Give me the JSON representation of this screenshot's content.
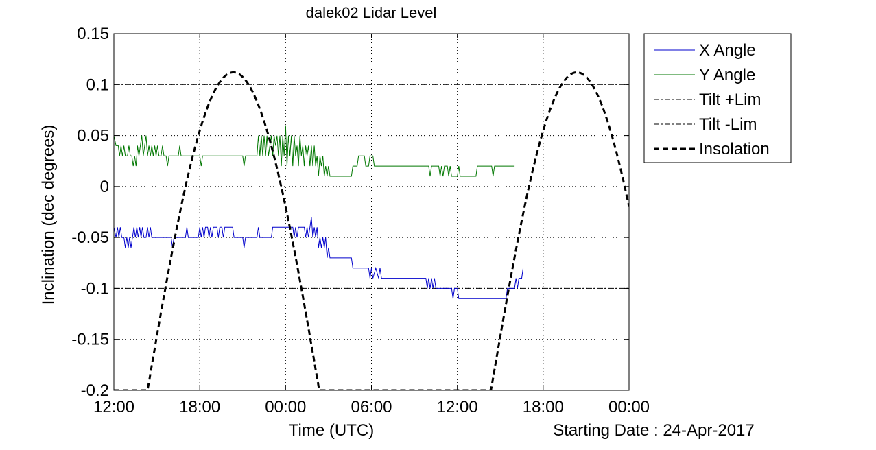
{
  "chart_data": {
    "type": "line",
    "title": "dalek02 Lidar Level",
    "xlabel": "Time (UTC)",
    "ylabel": "Inclination (dec degrees)",
    "footer_note": "Starting Date : 24-Apr-2017",
    "xlim_hours": [
      0,
      36
    ],
    "ylim": [
      -0.2,
      0.15
    ],
    "x_ticks": [
      {
        "hour": 0,
        "label": "12:00"
      },
      {
        "hour": 6,
        "label": "18:00"
      },
      {
        "hour": 12,
        "label": "00:00"
      },
      {
        "hour": 18,
        "label": "06:00"
      },
      {
        "hour": 24,
        "label": "12:00"
      },
      {
        "hour": 30,
        "label": "18:00"
      },
      {
        "hour": 36,
        "label": "00:00"
      }
    ],
    "y_ticks": [
      {
        "value": 0.15,
        "label": "0.15"
      },
      {
        "value": 0.1,
        "label": "0.1"
      },
      {
        "value": 0.05,
        "label": "0.05"
      },
      {
        "value": 0,
        "label": "0"
      },
      {
        "value": -0.05,
        "label": "-0.05"
      },
      {
        "value": -0.1,
        "label": "-0.1"
      },
      {
        "value": -0.15,
        "label": "-0.15"
      },
      {
        "value": -0.2,
        "label": "-0.2"
      }
    ],
    "grid": true,
    "legend_position": "outside-right",
    "series": [
      {
        "name": "X Angle",
        "color": "#0000cc",
        "style": "solid",
        "points": [
          [
            0,
            -0.04
          ],
          [
            0.15,
            -0.05
          ],
          [
            0.25,
            -0.04
          ],
          [
            0.35,
            -0.05
          ],
          [
            0.45,
            -0.04
          ],
          [
            0.55,
            -0.05
          ],
          [
            0.7,
            -0.05
          ],
          [
            0.8,
            -0.06
          ],
          [
            0.9,
            -0.05
          ],
          [
            1.0,
            -0.06
          ],
          [
            1.1,
            -0.05
          ],
          [
            1.2,
            -0.06
          ],
          [
            1.3,
            -0.05
          ],
          [
            1.4,
            -0.04
          ],
          [
            1.5,
            -0.05
          ],
          [
            1.6,
            -0.04
          ],
          [
            1.7,
            -0.05
          ],
          [
            1.8,
            -0.04
          ],
          [
            1.9,
            -0.05
          ],
          [
            2.0,
            -0.04
          ],
          [
            2.1,
            -0.05
          ],
          [
            2.25,
            -0.05
          ],
          [
            2.35,
            -0.04
          ],
          [
            2.45,
            -0.05
          ],
          [
            2.55,
            -0.04
          ],
          [
            2.65,
            -0.05
          ],
          [
            4.0,
            -0.05
          ],
          [
            4.1,
            -0.06
          ],
          [
            4.2,
            -0.05
          ],
          [
            5.0,
            -0.05
          ],
          [
            5.1,
            -0.04
          ],
          [
            5.2,
            -0.05
          ],
          [
            5.9,
            -0.05
          ],
          [
            6.0,
            -0.04
          ],
          [
            6.1,
            -0.05
          ],
          [
            6.2,
            -0.04
          ],
          [
            6.3,
            -0.05
          ],
          [
            6.4,
            -0.04
          ],
          [
            6.55,
            -0.04
          ],
          [
            6.65,
            -0.05
          ],
          [
            6.75,
            -0.04
          ],
          [
            6.85,
            -0.05
          ],
          [
            6.95,
            -0.04
          ],
          [
            7.2,
            -0.04
          ],
          [
            7.3,
            -0.05
          ],
          [
            7.4,
            -0.04
          ],
          [
            7.55,
            -0.04
          ],
          [
            7.65,
            -0.05
          ],
          [
            7.75,
            -0.04
          ],
          [
            8.3,
            -0.04
          ],
          [
            8.4,
            -0.05
          ],
          [
            9.0,
            -0.05
          ],
          [
            9.1,
            -0.06
          ],
          [
            9.2,
            -0.05
          ],
          [
            10.0,
            -0.05
          ],
          [
            10.1,
            -0.04
          ],
          [
            10.2,
            -0.05
          ],
          [
            11.0,
            -0.05
          ],
          [
            11.1,
            -0.04
          ],
          [
            12.5,
            -0.04
          ],
          [
            12.6,
            -0.05
          ],
          [
            12.7,
            -0.04
          ],
          [
            12.8,
            -0.05
          ],
          [
            12.9,
            -0.04
          ],
          [
            13.3,
            -0.04
          ],
          [
            13.4,
            -0.05
          ],
          [
            13.5,
            -0.04
          ],
          [
            13.6,
            -0.05
          ],
          [
            13.7,
            -0.04
          ],
          [
            13.8,
            -0.03
          ],
          [
            13.9,
            -0.05
          ],
          [
            14.0,
            -0.04
          ],
          [
            14.1,
            -0.05
          ],
          [
            14.2,
            -0.04
          ],
          [
            14.3,
            -0.06
          ],
          [
            14.4,
            -0.05
          ],
          [
            14.5,
            -0.06
          ],
          [
            14.6,
            -0.05
          ],
          [
            14.7,
            -0.06
          ],
          [
            14.8,
            -0.05
          ],
          [
            14.9,
            -0.07
          ],
          [
            15.0,
            -0.06
          ],
          [
            15.1,
            -0.07
          ],
          [
            15.3,
            -0.07
          ],
          [
            15.4,
            -0.07
          ],
          [
            16.6,
            -0.07
          ],
          [
            16.7,
            -0.08
          ],
          [
            17.8,
            -0.08
          ],
          [
            17.9,
            -0.09
          ],
          [
            18.0,
            -0.08
          ],
          [
            18.1,
            -0.09
          ],
          [
            18.3,
            -0.08
          ],
          [
            18.5,
            -0.09
          ],
          [
            18.6,
            -0.08
          ],
          [
            18.7,
            -0.09
          ],
          [
            21.8,
            -0.09
          ],
          [
            21.9,
            -0.1
          ],
          [
            22.0,
            -0.09
          ],
          [
            22.1,
            -0.1
          ],
          [
            22.2,
            -0.09
          ],
          [
            22.3,
            -0.1
          ],
          [
            22.4,
            -0.09
          ],
          [
            22.5,
            -0.1
          ],
          [
            23.6,
            -0.1
          ],
          [
            23.7,
            -0.11
          ],
          [
            23.8,
            -0.1
          ],
          [
            24.0,
            -0.1
          ],
          [
            24.1,
            -0.11
          ],
          [
            27.4,
            -0.11
          ],
          [
            27.5,
            -0.1
          ],
          [
            28.0,
            -0.1
          ],
          [
            28.1,
            -0.09
          ],
          [
            28.2,
            -0.1
          ],
          [
            28.3,
            -0.09
          ],
          [
            28.5,
            -0.09
          ],
          [
            28.6,
            -0.08
          ]
        ]
      },
      {
        "name": "Y Angle",
        "color": "#007700",
        "style": "solid",
        "points": [
          [
            0,
            0.05
          ],
          [
            0.15,
            0.04
          ],
          [
            0.3,
            0.04
          ],
          [
            0.4,
            0.03
          ],
          [
            0.5,
            0.04
          ],
          [
            0.6,
            0.03
          ],
          [
            0.7,
            0.04
          ],
          [
            0.8,
            0.03
          ],
          [
            0.95,
            0.03
          ],
          [
            1.05,
            0.04
          ],
          [
            1.15,
            0.03
          ],
          [
            1.25,
            0.03
          ],
          [
            1.35,
            0.02
          ],
          [
            1.45,
            0.03
          ],
          [
            1.55,
            0.02
          ],
          [
            1.65,
            0.04
          ],
          [
            1.75,
            0.03
          ],
          [
            1.85,
            0.04
          ],
          [
            1.95,
            0.05
          ],
          [
            2.05,
            0.03
          ],
          [
            2.15,
            0.04
          ],
          [
            2.25,
            0.05
          ],
          [
            2.35,
            0.03
          ],
          [
            2.45,
            0.04
          ],
          [
            2.55,
            0.03
          ],
          [
            2.65,
            0.04
          ],
          [
            2.75,
            0.03
          ],
          [
            2.85,
            0.04
          ],
          [
            2.95,
            0.03
          ],
          [
            3.05,
            0.04
          ],
          [
            3.15,
            0.03
          ],
          [
            3.3,
            0.03
          ],
          [
            3.4,
            0.04
          ],
          [
            3.5,
            0.03
          ],
          [
            3.65,
            0.03
          ],
          [
            3.75,
            0.02
          ],
          [
            3.85,
            0.03
          ],
          [
            4.5,
            0.03
          ],
          [
            4.6,
            0.04
          ],
          [
            4.7,
            0.03
          ],
          [
            6.0,
            0.03
          ],
          [
            6.1,
            0.02
          ],
          [
            6.2,
            0.03
          ],
          [
            9.0,
            0.03
          ],
          [
            9.1,
            0.02
          ],
          [
            9.2,
            0.03
          ],
          [
            10.0,
            0.03
          ],
          [
            10.1,
            0.05
          ],
          [
            10.2,
            0.03
          ],
          [
            10.3,
            0.05
          ],
          [
            10.4,
            0.03
          ],
          [
            10.5,
            0.05
          ],
          [
            10.6,
            0.03
          ],
          [
            10.7,
            0.05
          ],
          [
            10.8,
            0.03
          ],
          [
            10.9,
            0.04
          ],
          [
            11.0,
            0.05
          ],
          [
            11.1,
            0.03
          ],
          [
            11.2,
            0.05
          ],
          [
            11.3,
            0.04
          ],
          [
            11.4,
            0.05
          ],
          [
            11.5,
            0.03
          ],
          [
            11.6,
            0.05
          ],
          [
            11.7,
            0.02
          ],
          [
            11.8,
            0.05
          ],
          [
            11.9,
            0.03
          ],
          [
            12.0,
            0.06
          ],
          [
            12.1,
            0.02
          ],
          [
            12.2,
            0.05
          ],
          [
            12.3,
            0.03
          ],
          [
            12.4,
            0.05
          ],
          [
            12.5,
            0.02
          ],
          [
            12.6,
            0.05
          ],
          [
            12.7,
            0.03
          ],
          [
            12.8,
            0.04
          ],
          [
            12.9,
            0.02
          ],
          [
            13.0,
            0.05
          ],
          [
            13.1,
            0.03
          ],
          [
            13.2,
            0.04
          ],
          [
            13.3,
            0.02
          ],
          [
            13.4,
            0.04
          ],
          [
            13.5,
            0.03
          ],
          [
            13.6,
            0.04
          ],
          [
            13.7,
            0.02
          ],
          [
            13.8,
            0.04
          ],
          [
            13.9,
            0.02
          ],
          [
            14.0,
            0.04
          ],
          [
            14.1,
            0.02
          ],
          [
            14.2,
            0.03
          ],
          [
            14.3,
            0.01
          ],
          [
            14.4,
            0.03
          ],
          [
            14.5,
            0.02
          ],
          [
            14.6,
            0.03
          ],
          [
            14.7,
            0.01
          ],
          [
            14.8,
            0.02
          ],
          [
            14.9,
            0.01
          ],
          [
            15.0,
            0.02
          ],
          [
            15.1,
            0.01
          ],
          [
            16.6,
            0.01
          ],
          [
            16.7,
            0.02
          ],
          [
            17.0,
            0.02
          ],
          [
            17.1,
            0.03
          ],
          [
            17.5,
            0.03
          ],
          [
            17.6,
            0.02
          ],
          [
            17.8,
            0.02
          ],
          [
            17.9,
            0.03
          ],
          [
            18.1,
            0.03
          ],
          [
            18.2,
            0.02
          ],
          [
            22.0,
            0.02
          ],
          [
            22.1,
            0.01
          ],
          [
            22.2,
            0.02
          ],
          [
            22.7,
            0.02
          ],
          [
            22.8,
            0.01
          ],
          [
            22.9,
            0.02
          ],
          [
            23.0,
            0.01
          ],
          [
            23.1,
            0.02
          ],
          [
            23.3,
            0.02
          ],
          [
            23.4,
            0.01
          ],
          [
            23.5,
            0.02
          ],
          [
            23.6,
            0.01
          ],
          [
            24.0,
            0.01
          ],
          [
            24.1,
            0.02
          ],
          [
            24.2,
            0.01
          ],
          [
            25.3,
            0.01
          ],
          [
            25.4,
            0.02
          ],
          [
            26.4,
            0.02
          ],
          [
            26.5,
            0.01
          ],
          [
            26.6,
            0.02
          ],
          [
            28.0,
            0.02
          ]
        ]
      }
    ],
    "reference_lines": [
      {
        "name": "Tilt +Lim",
        "value": 0.1,
        "color": "#000000",
        "style": "dashdot"
      },
      {
        "name": "Tilt -Lim",
        "value": -0.1,
        "color": "#000000",
        "style": "dashdot"
      }
    ],
    "insolation": {
      "name": "Insolation",
      "color": "#000000",
      "style": "dashed",
      "amplitude": 0.312,
      "offset": -0.2,
      "period_hours": 24,
      "peak_hours": [
        8.35,
        32.35
      ],
      "floor": -0.2
    }
  }
}
